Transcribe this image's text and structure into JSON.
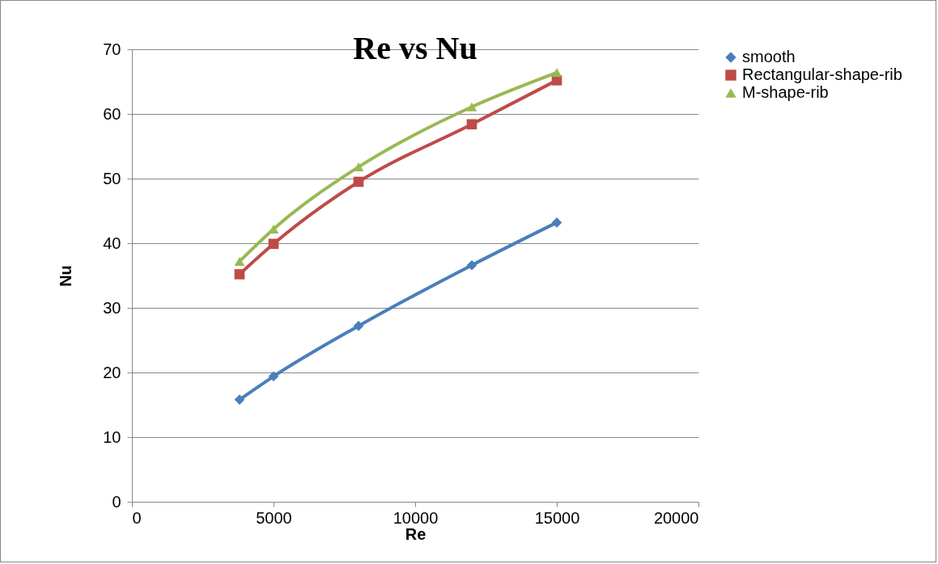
{
  "chart_data": {
    "type": "line",
    "title": "Re vs Nu",
    "xlabel": "Re",
    "ylabel": "Nu",
    "x": [
      3800,
      5000,
      8000,
      12000,
      15000
    ],
    "series": [
      {
        "name": "smooth",
        "color": "#4a7ebb",
        "marker": "diamond",
        "values": [
          15.8,
          19.4,
          27.2,
          36.6,
          43.2
        ]
      },
      {
        "name": "Rectangular-shape-rib",
        "color": "#be4b48",
        "marker": "square",
        "values": [
          35.2,
          39.9,
          49.5,
          58.4,
          65.2
        ]
      },
      {
        "name": "M-shape-rib",
        "color": "#98b954",
        "marker": "triangle",
        "values": [
          37.2,
          42.2,
          51.8,
          61.1,
          66.4
        ]
      }
    ],
    "xlim": [
      0,
      20000
    ],
    "xticks": [
      0,
      5000,
      10000,
      15000,
      20000
    ],
    "ylim": [
      0,
      70
    ],
    "yticks": [
      0,
      10,
      20,
      30,
      40,
      50,
      60,
      70
    ],
    "grid": "y",
    "legend": "right",
    "line_style": "solid"
  }
}
